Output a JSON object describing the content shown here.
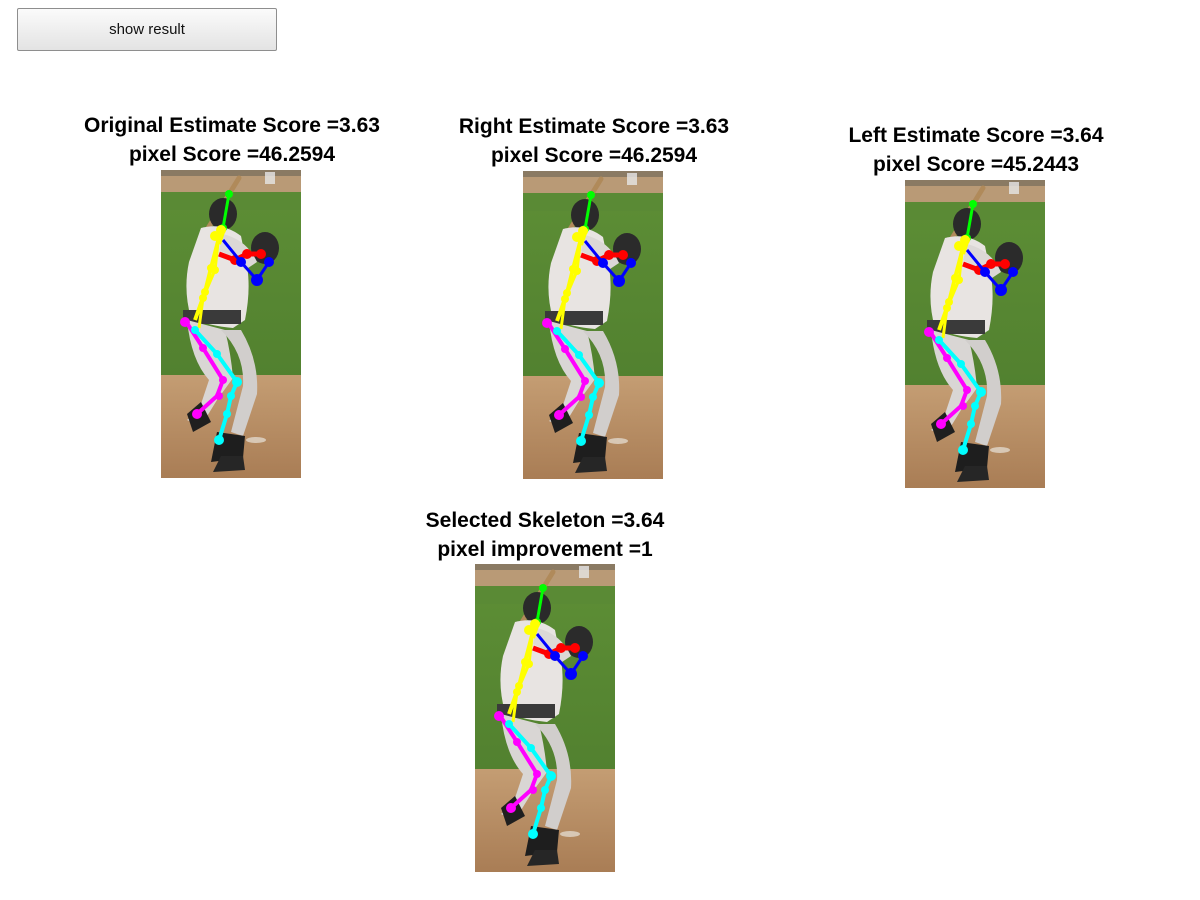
{
  "toolbar": {
    "show_result_label": "show result"
  },
  "panels": [
    {
      "id": "original",
      "line1": "Original Estimate Score =3.63",
      "line2": "pixel Score =46.2594"
    },
    {
      "id": "right",
      "line1": "Right Estimate Score =3.63",
      "line2": "pixel Score =46.2594"
    },
    {
      "id": "left",
      "line1": "Left Estimate Score =3.64",
      "line2": "pixel Score =45.2443"
    },
    {
      "id": "selected",
      "line1": "Selected Skeleton =3.64",
      "line2": "pixel improvement =1"
    }
  ],
  "skeleton_colors": {
    "head": "#00ff00",
    "arm_near": "#0000ff",
    "arm_far": "#ff0000",
    "torso": "#ffff00",
    "leg_near": "#ff00ff",
    "leg_far": "#00ffff"
  }
}
